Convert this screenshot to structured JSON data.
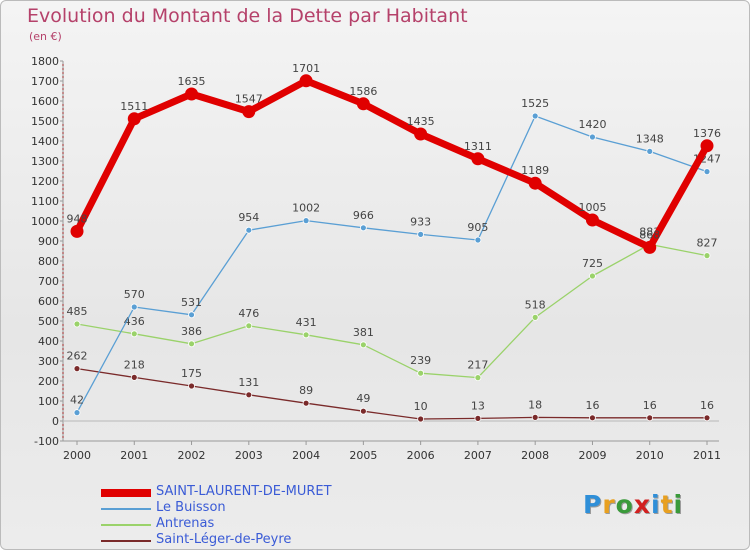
{
  "title": "Evolution du Montant de la Dette par Habitant",
  "unit": "(en €)",
  "logo": {
    "text": "Proxiti",
    "letter_colors": [
      "#2f8fd8",
      "#e8a020",
      "#3a9a3a",
      "#d22020",
      "#2f8fd8",
      "#e8a020",
      "#3a9a3a"
    ]
  },
  "chart_data": {
    "type": "line",
    "title": "Evolution du Montant de la Dette par Habitant",
    "ylabel": "(en €)",
    "x": [
      "2000",
      "2001",
      "2002",
      "2003",
      "2004",
      "2005",
      "2006",
      "2007",
      "2008",
      "2009",
      "2010",
      "2011"
    ],
    "ylim": [
      -100,
      1800
    ],
    "yticks": [
      "-100",
      "0",
      "100",
      "200",
      "300",
      "400",
      "500",
      "600",
      "700",
      "800",
      "900",
      "1000",
      "1100",
      "1200",
      "1300",
      "1400",
      "1500",
      "1600",
      "1700",
      "1800"
    ],
    "grid": false,
    "legend_position": "bottom-left",
    "series": [
      {
        "name": "SAINT-LAURENT-DE-MURET",
        "color": "#e00000",
        "values": [
          948,
          1511,
          1635,
          1547,
          1701,
          1586,
          1435,
          1311,
          1189,
          1005,
          868,
          1376
        ],
        "labels": [
          "948",
          "1511",
          "1635",
          "1547",
          "1701",
          "1586",
          "1435",
          "1311",
          "1189",
          "1005",
          "868",
          "1376"
        ]
      },
      {
        "name": "Le Buisson",
        "color": "#5a9fd4",
        "values": [
          42,
          570,
          531,
          954,
          1002,
          966,
          933,
          905,
          1525,
          1420,
          1348,
          1247
        ],
        "labels": [
          "42",
          "570",
          "531",
          "954",
          "1002",
          "966",
          "933",
          "905",
          "1525",
          "1420",
          "1348",
          "1247"
        ]
      },
      {
        "name": "Antrenas",
        "color": "#9ad26a",
        "values": [
          485,
          436,
          386,
          476,
          431,
          381,
          239,
          217,
          518,
          725,
          883,
          827
        ],
        "labels": [
          "485",
          "436",
          "386",
          "476",
          "431",
          "381",
          "239",
          "217",
          "518",
          "725",
          "883",
          "827"
        ]
      },
      {
        "name": "Saint-Léger-de-Peyre",
        "color": "#7a2a2a",
        "values": [
          262,
          218,
          175,
          131,
          89,
          49,
          10,
          13,
          18,
          16,
          16,
          16
        ],
        "labels": [
          "262",
          "218",
          "175",
          "131",
          "89",
          "49",
          "10",
          "13",
          "18",
          "16",
          "16",
          "16"
        ]
      }
    ]
  }
}
